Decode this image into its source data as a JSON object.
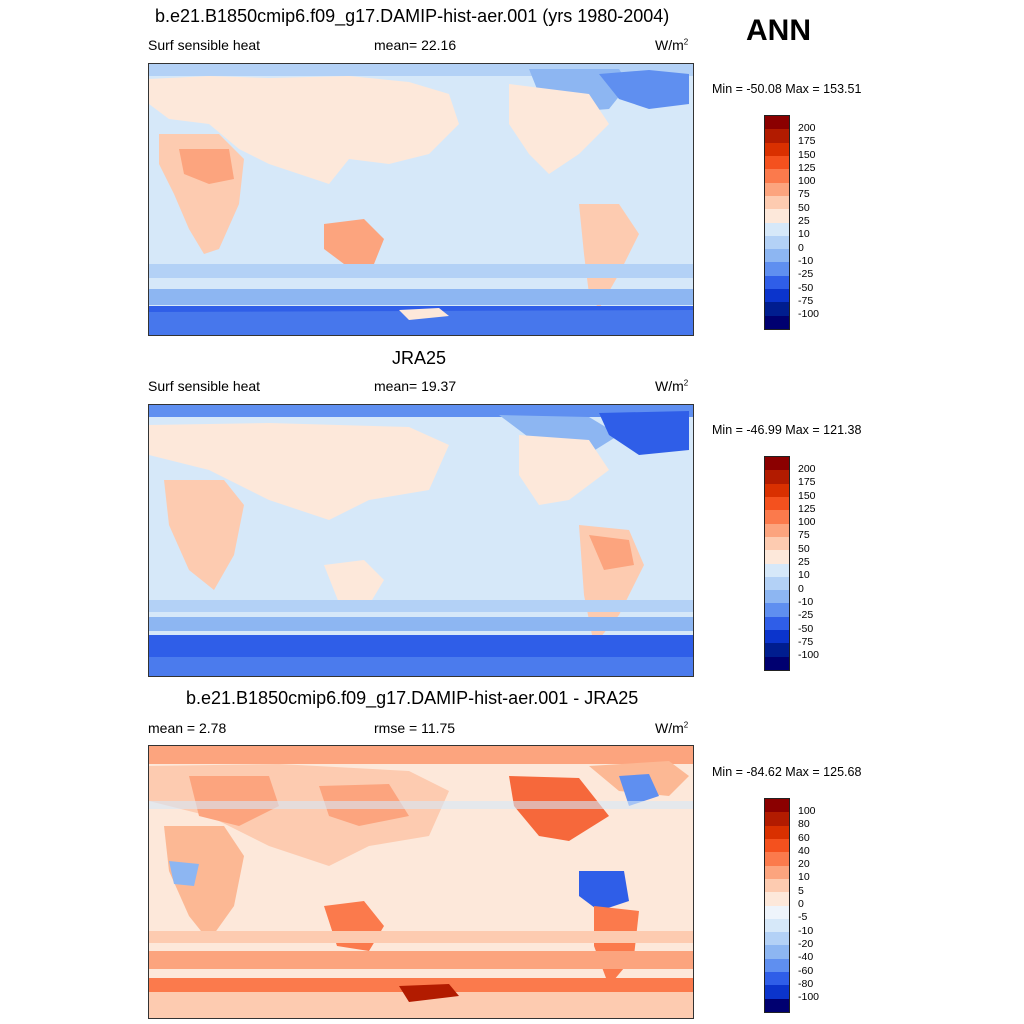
{
  "season": "ANN",
  "panels": [
    {
      "title": "b.e21.B1850cmip6.f09_g17.DAMIP-hist-aer.001 (yrs 1980-2004)",
      "left_label": "Surf sensible heat",
      "center_label": "mean=  22.16",
      "unit": "W/m",
      "unit_sup": "2",
      "minmax": "Min = -50.08 Max = 153.51",
      "colorbar_labels": [
        "200",
        "175",
        "150",
        "125",
        "100",
        "75",
        "50",
        "25",
        "10",
        "0",
        "-10",
        "-25",
        "-50",
        "-75",
        "-100"
      ],
      "colorbar_colors": [
        "#8b0000",
        "#b21b00",
        "#d93000",
        "#f4511e",
        "#fb7a4c",
        "#fca47e",
        "#fdcbb0",
        "#fde8da",
        "#d6e8f9",
        "#b3d1f6",
        "#8db6f2",
        "#5f8ff0",
        "#2f5ee8",
        "#0b34cc",
        "#001d8f",
        "#000070"
      ]
    },
    {
      "title": "JRA25",
      "left_label": "Surf sensible heat",
      "center_label": "mean=  19.37",
      "unit": "W/m",
      "unit_sup": "2",
      "minmax": "Min = -46.99 Max = 121.38",
      "colorbar_labels": [
        "200",
        "175",
        "150",
        "125",
        "100",
        "75",
        "50",
        "25",
        "10",
        "0",
        "-10",
        "-25",
        "-50",
        "-75",
        "-100"
      ],
      "colorbar_colors": [
        "#8b0000",
        "#b21b00",
        "#d93000",
        "#f4511e",
        "#fb7a4c",
        "#fca47e",
        "#fdcbb0",
        "#fde8da",
        "#d6e8f9",
        "#b3d1f6",
        "#8db6f2",
        "#5f8ff0",
        "#2f5ee8",
        "#0b34cc",
        "#001d8f",
        "#000070"
      ]
    },
    {
      "title": "b.e21.B1850cmip6.f09_g17.DAMIP-hist-aer.001 - JRA25",
      "left_label": "mean =   2.78",
      "center_label": "rmse =   11.75",
      "unit": "W/m",
      "unit_sup": "2",
      "minmax": "Min = -84.62 Max = 125.68",
      "colorbar_labels": [
        "100",
        "80",
        "60",
        "40",
        "20",
        "10",
        "5",
        "0",
        "-5",
        "-10",
        "-20",
        "-40",
        "-60",
        "-80",
        "-100"
      ],
      "colorbar_colors": [
        "#8b0000",
        "#b21b00",
        "#d93000",
        "#f4511e",
        "#fb7a4c",
        "#fca47e",
        "#fdcbb0",
        "#fde8da",
        "#eef4fb",
        "#d6e8f9",
        "#b3d1f6",
        "#8db6f2",
        "#5f8ff0",
        "#2f5ee8",
        "#0b34cc",
        "#000070"
      ]
    }
  ]
}
